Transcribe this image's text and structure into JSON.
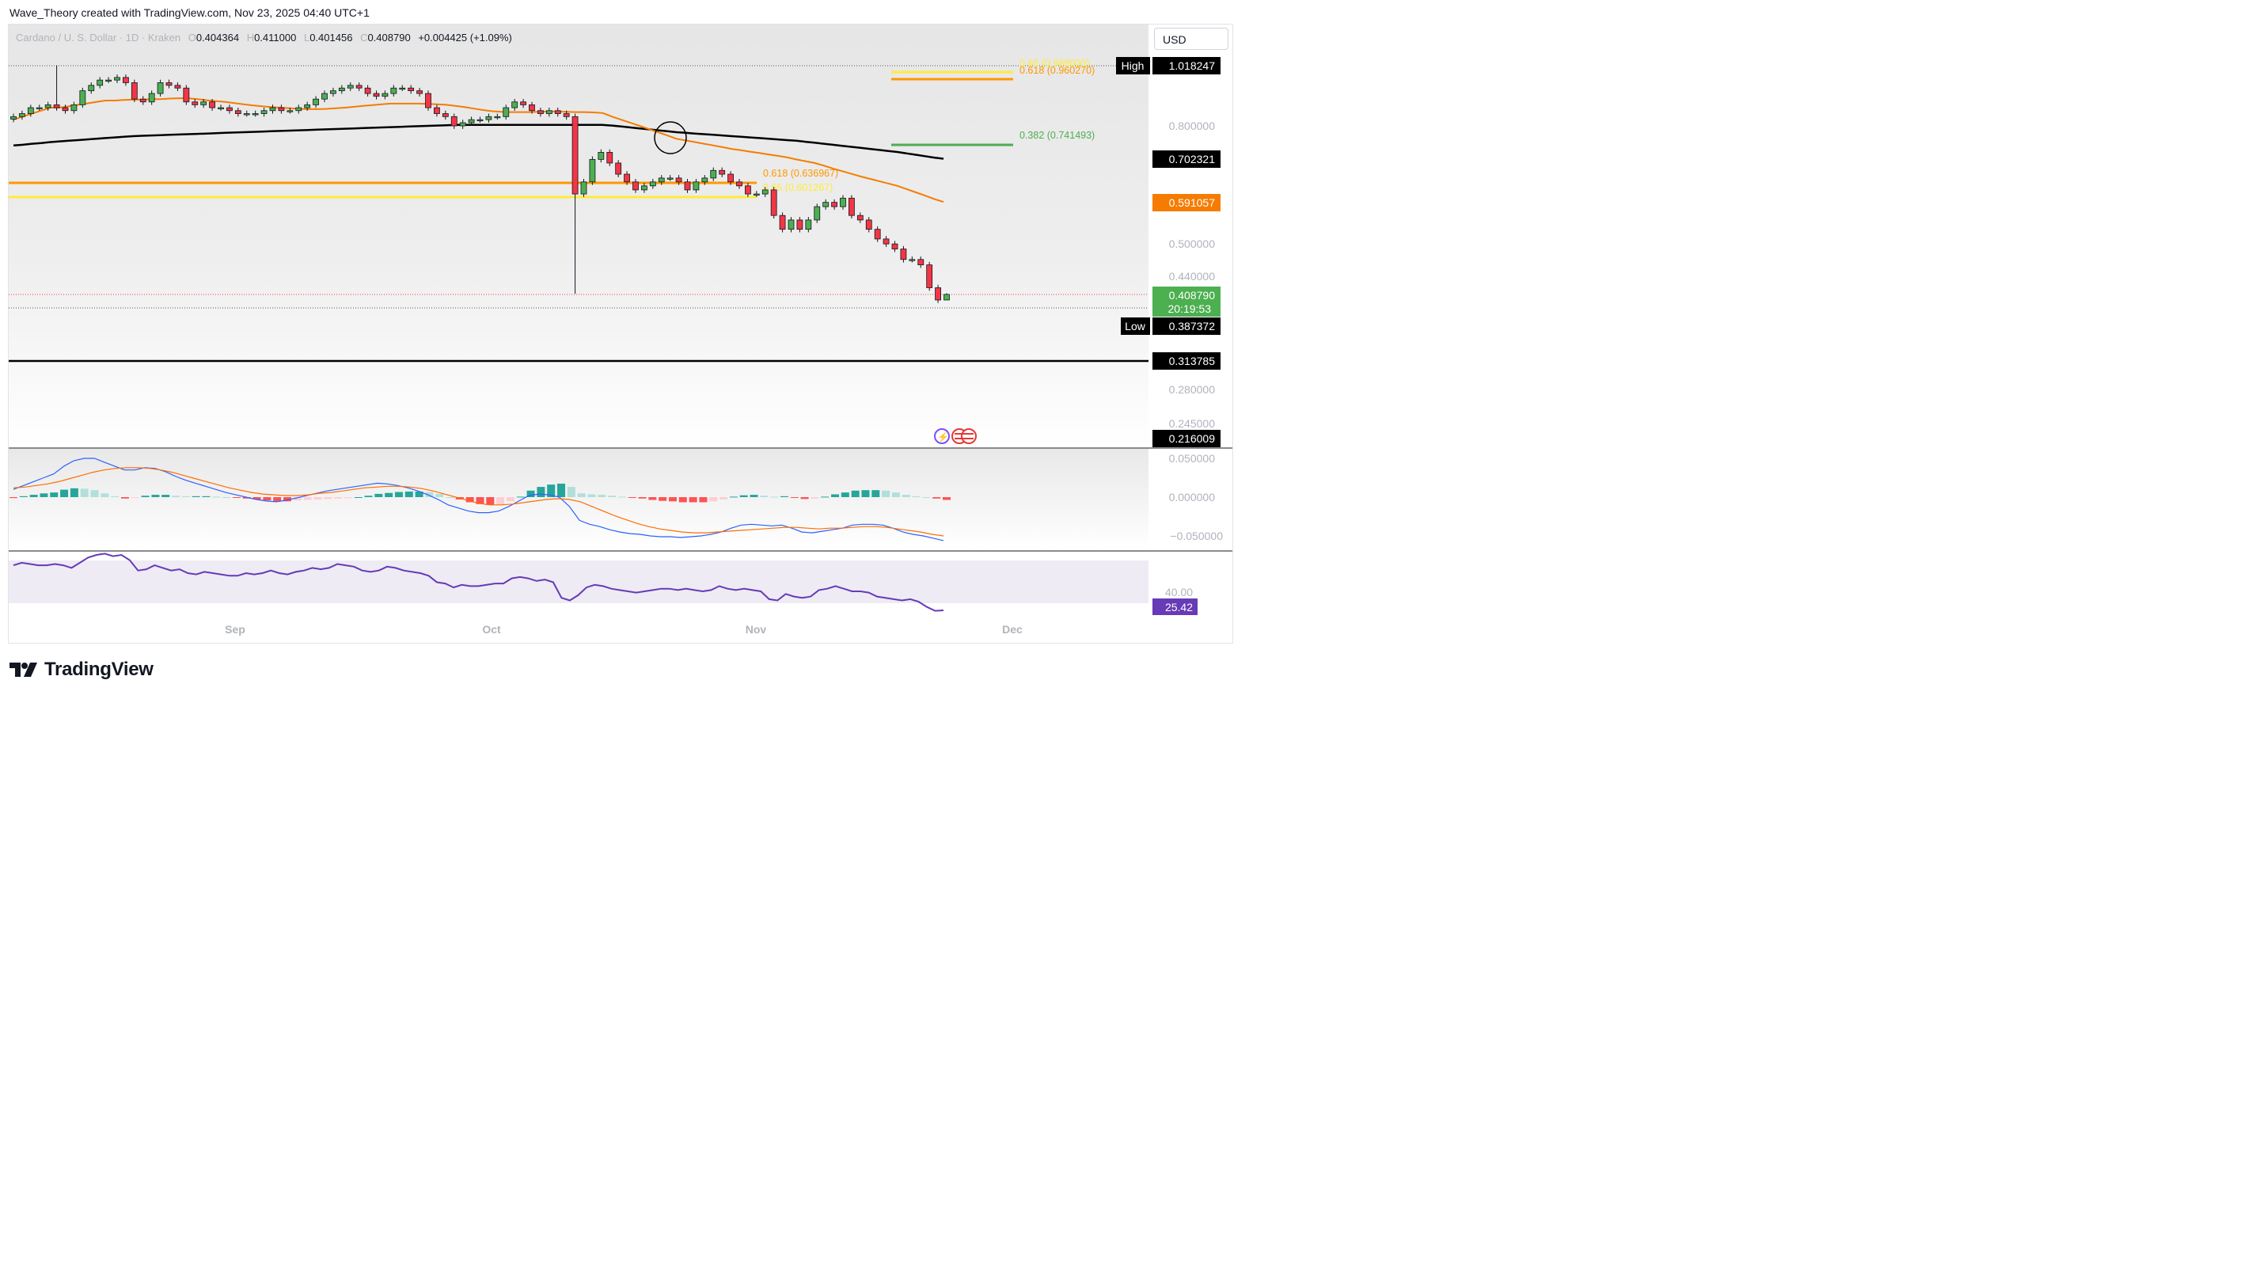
{
  "header": {
    "attribution": "Wave_Theory created with TradingView.com, Nov 23, 2025 04:40 UTC+1"
  },
  "legend": {
    "symbol": "Cardano / U. S. Dollar · 1D · Kraken",
    "open_label": "O",
    "open": "0.404364",
    "high_label": "H",
    "high": "0.411000",
    "low_label": "L",
    "low": "0.401456",
    "close_label": "C",
    "close": "0.408790",
    "change": "+0.004425 (+1.09%)"
  },
  "currency_button": "USD",
  "brand": {
    "name": "TradingView",
    "logo_icon": "tradingview-logo-icon"
  },
  "colors": {
    "up": "#26a69a",
    "down": "#ef5350",
    "up_candle": "#4caf50",
    "down_candle": "#f23645",
    "ema_fast": "#f57c00",
    "ema_slow": "#000000",
    "fib_yellow": "#ffeb3b",
    "fib_orange": "#ff9800",
    "fib_green": "#4caf50",
    "rsi": "#673ab7",
    "macd_line": "#2962ff",
    "signal_line": "#ff6d00"
  },
  "price_axis": {
    "labels": [
      "0.800000",
      "0.500000",
      "0.440000",
      "0.280000",
      "0.245000"
    ],
    "tags": {
      "high_label": "High",
      "high_value": "1.018247",
      "ema200": "0.702321",
      "ema50": "0.591057",
      "last": "0.408790",
      "countdown": "20:19:53",
      "low_label": "Low",
      "low_value": "0.387372",
      "support": "0.313785",
      "lower": "0.216009"
    }
  },
  "macd_axis": [
    "0.050000",
    "0.000000",
    "−0.050000"
  ],
  "rsi_axis": {
    "level": "40.00",
    "value": "25.42"
  },
  "time_axis": [
    "Sep",
    "Oct",
    "Nov",
    "Dec"
  ],
  "annotations": {
    "fib_top_1": "0.65 (0.988000)",
    "fib_top_2": "0.618 (0.960270)",
    "fib_382": "0.382 (0.741493)",
    "fib_mid_618": "0.618 (0.636967)",
    "fib_mid_65": "0.65 (0.601267)",
    "crossover_marker": "death-cross-circle"
  },
  "chart_data": {
    "type": "candlestick",
    "title": "Cardano / U. S. Dollar · 1D · Kraken",
    "y_scale": "log",
    "x_ticks": [
      "Sep",
      "Oct",
      "Nov",
      "Dec"
    ],
    "last_candle": {
      "open": 0.404364,
      "high": 0.411,
      "low": 0.401456,
      "close": 0.40879
    },
    "high": 1.018247,
    "low": 0.387372,
    "levels": [
      {
        "value": 0.313785
      },
      {
        "value": 0.636967
      },
      {
        "value": 0.601267
      },
      {
        "value": 0.741493
      },
      {
        "value": 0.988
      },
      {
        "value": 0.96027
      }
    ],
    "series": [
      {
        "values_close": [
          0.83,
          0.84,
          0.86,
          0.86,
          0.87,
          0.86,
          0.85,
          0.87,
          0.92,
          0.94,
          0.96,
          0.96,
          0.97,
          0.95,
          0.89,
          0.88,
          0.91,
          0.95,
          0.94,
          0.93,
          0.88,
          0.87,
          0.88,
          0.86,
          0.86,
          0.85,
          0.84,
          0.84,
          0.84,
          0.85,
          0.86,
          0.85,
          0.85,
          0.86,
          0.87,
          0.89,
          0.91,
          0.92,
          0.93,
          0.94,
          0.93,
          0.91,
          0.9,
          0.91,
          0.93,
          0.93,
          0.92,
          0.91,
          0.86,
          0.84,
          0.83,
          0.8,
          0.81,
          0.82,
          0.82,
          0.83,
          0.83,
          0.86,
          0.88,
          0.87,
          0.85,
          0.84,
          0.85,
          0.84,
          0.83,
          0.61,
          0.64,
          0.7,
          0.72,
          0.69,
          0.66,
          0.64,
          0.62,
          0.63,
          0.64,
          0.65,
          0.65,
          0.64,
          0.62,
          0.64,
          0.65,
          0.67,
          0.66,
          0.64,
          0.63,
          0.61,
          0.61,
          0.62,
          0.56,
          0.53,
          0.55,
          0.53,
          0.55,
          0.58,
          0.59,
          0.58,
          0.6,
          0.56,
          0.55,
          0.53,
          0.51,
          0.5,
          0.49,
          0.47,
          0.47,
          0.46,
          0.42,
          0.4,
          0.409
        ]
      },
      {
        "name": "EMA 50",
        "values": [
          0.82,
          0.83,
          0.84,
          0.85,
          0.86,
          0.86,
          0.865,
          0.87,
          0.875,
          0.88,
          0.885,
          0.885,
          0.887,
          0.888,
          0.888,
          0.89,
          0.89,
          0.892,
          0.893,
          0.893,
          0.89,
          0.886,
          0.883,
          0.88,
          0.876,
          0.872,
          0.868,
          0.865,
          0.862,
          0.86,
          0.858,
          0.856,
          0.855,
          0.855,
          0.856,
          0.858,
          0.86,
          0.863,
          0.866,
          0.869,
          0.872,
          0.874,
          0.874,
          0.874,
          0.874,
          0.873,
          0.872,
          0.87,
          0.866,
          0.862,
          0.857,
          0.852,
          0.848,
          0.846,
          0.845,
          0.845,
          0.845,
          0.846,
          0.847,
          0.847,
          0.846,
          0.845,
          0.845,
          0.844,
          0.842,
          0.83,
          0.82,
          0.81,
          0.8,
          0.79,
          0.78,
          0.77,
          0.76,
          0.755,
          0.75,
          0.745,
          0.74,
          0.735,
          0.73,
          0.726,
          0.722,
          0.718,
          0.714,
          0.71,
          0.706,
          0.7,
          0.695,
          0.69,
          0.683,
          0.675,
          0.668,
          0.661,
          0.654,
          0.648,
          0.642,
          0.636,
          0.63,
          0.622,
          0.614,
          0.606,
          0.598,
          0.591
        ]
      },
      {
        "name": "EMA 200",
        "values": [
          0.74,
          0.742,
          0.745,
          0.747,
          0.75,
          0.752,
          0.754,
          0.756,
          0.758,
          0.76,
          0.762,
          0.764,
          0.766,
          0.768,
          0.769,
          0.77,
          0.771,
          0.772,
          0.773,
          0.774,
          0.775,
          0.776,
          0.777,
          0.778,
          0.779,
          0.78,
          0.781,
          0.782,
          0.783,
          0.784,
          0.785,
          0.786,
          0.787,
          0.788,
          0.789,
          0.79,
          0.791,
          0.792,
          0.793,
          0.794,
          0.795,
          0.796,
          0.797,
          0.798,
          0.799,
          0.8,
          0.801,
          0.802,
          0.803,
          0.803,
          0.803,
          0.803,
          0.803,
          0.803,
          0.803,
          0.803,
          0.803,
          0.803,
          0.803,
          0.803,
          0.803,
          0.803,
          0.803,
          0.803,
          0.803,
          0.801,
          0.798,
          0.795,
          0.792,
          0.789,
          0.786,
          0.783,
          0.78,
          0.778,
          0.776,
          0.774,
          0.772,
          0.77,
          0.768,
          0.766,
          0.764,
          0.762,
          0.76,
          0.758,
          0.756,
          0.754,
          0.751,
          0.748,
          0.745,
          0.742,
          0.739,
          0.736,
          0.733,
          0.73,
          0.727,
          0.724,
          0.721,
          0.717,
          0.713,
          0.709,
          0.705,
          0.702
        ]
      },
      {
        "name": "MACD",
        "values": [
          0.01,
          0.015,
          0.02,
          0.025,
          0.03,
          0.04,
          0.047,
          0.05,
          0.05,
          0.045,
          0.04,
          0.035,
          0.035,
          0.038,
          0.037,
          0.033,
          0.027,
          0.022,
          0.018,
          0.014,
          0.01,
          0.006,
          0.003,
          0.0,
          -0.003,
          -0.005,
          -0.006,
          -0.004,
          -0.001,
          0.002,
          0.005,
          0.008,
          0.01,
          0.012,
          0.014,
          0.016,
          0.018,
          0.017,
          0.015,
          0.012,
          0.008,
          0.003,
          -0.003,
          -0.01,
          -0.014,
          -0.018,
          -0.02,
          -0.02,
          -0.018,
          -0.012,
          -0.005,
          0.002,
          0.004,
          0.003,
          0.0,
          -0.012,
          -0.03,
          -0.035,
          -0.038,
          -0.042,
          -0.045,
          -0.047,
          -0.048,
          -0.05,
          -0.051,
          -0.051,
          -0.052,
          -0.051,
          -0.05,
          -0.048,
          -0.045,
          -0.04,
          -0.036,
          -0.035,
          -0.036,
          -0.037,
          -0.036,
          -0.04,
          -0.045,
          -0.046,
          -0.044,
          -0.042,
          -0.04,
          -0.036,
          -0.035,
          -0.035,
          -0.036,
          -0.04,
          -0.045,
          -0.048,
          -0.05,
          -0.053,
          -0.056
        ]
      },
      {
        "name": "Signal",
        "values": [
          0.012,
          0.013,
          0.015,
          0.017,
          0.02,
          0.024,
          0.028,
          0.032,
          0.035,
          0.037,
          0.038,
          0.038,
          0.037,
          0.035,
          0.032,
          0.028,
          0.024,
          0.02,
          0.016,
          0.012,
          0.009,
          0.006,
          0.004,
          0.003,
          0.002,
          0.002,
          0.003,
          0.005,
          0.006,
          0.008,
          0.01,
          0.012,
          0.013,
          0.014,
          0.014,
          0.013,
          0.011,
          0.008,
          0.004,
          0.0,
          -0.004,
          -0.008,
          -0.01,
          -0.01,
          -0.009,
          -0.007,
          -0.005,
          -0.003,
          -0.002,
          -0.003,
          -0.006,
          -0.012,
          -0.018,
          -0.024,
          -0.029,
          -0.034,
          -0.038,
          -0.041,
          -0.043,
          -0.045,
          -0.046,
          -0.046,
          -0.045,
          -0.044,
          -0.043,
          -0.042,
          -0.041,
          -0.04,
          -0.039,
          -0.039,
          -0.04,
          -0.041,
          -0.04,
          -0.04,
          -0.039,
          -0.038,
          -0.038,
          -0.039,
          -0.041,
          -0.043,
          -0.045,
          -0.048,
          -0.05
        ]
      },
      {
        "name": "RSI",
        "values": [
          60,
          62,
          61,
          60,
          60,
          61,
          60,
          58,
          62,
          66,
          68,
          69,
          67,
          68,
          64,
          56,
          57,
          60,
          58,
          56,
          57,
          54,
          53,
          55,
          54,
          53,
          52,
          52,
          54,
          53,
          54,
          56,
          54,
          53,
          55,
          56,
          58,
          57,
          58,
          61,
          60,
          59,
          56,
          55,
          56,
          59,
          58,
          56,
          55,
          54,
          52,
          47,
          46,
          43,
          45,
          44,
          44,
          45,
          46,
          46,
          50,
          51,
          50,
          48,
          49,
          47,
          35,
          33,
          37,
          43,
          45,
          44,
          42,
          41,
          40,
          39,
          40,
          41,
          42,
          42,
          41,
          42,
          41,
          40,
          41,
          44,
          42,
          41,
          42,
          41,
          40,
          34,
          33,
          38,
          36,
          35,
          36,
          41,
          42,
          44,
          42,
          40,
          40,
          39,
          36,
          35,
          34,
          33,
          34,
          32,
          28,
          25,
          25.42
        ]
      }
    ]
  }
}
